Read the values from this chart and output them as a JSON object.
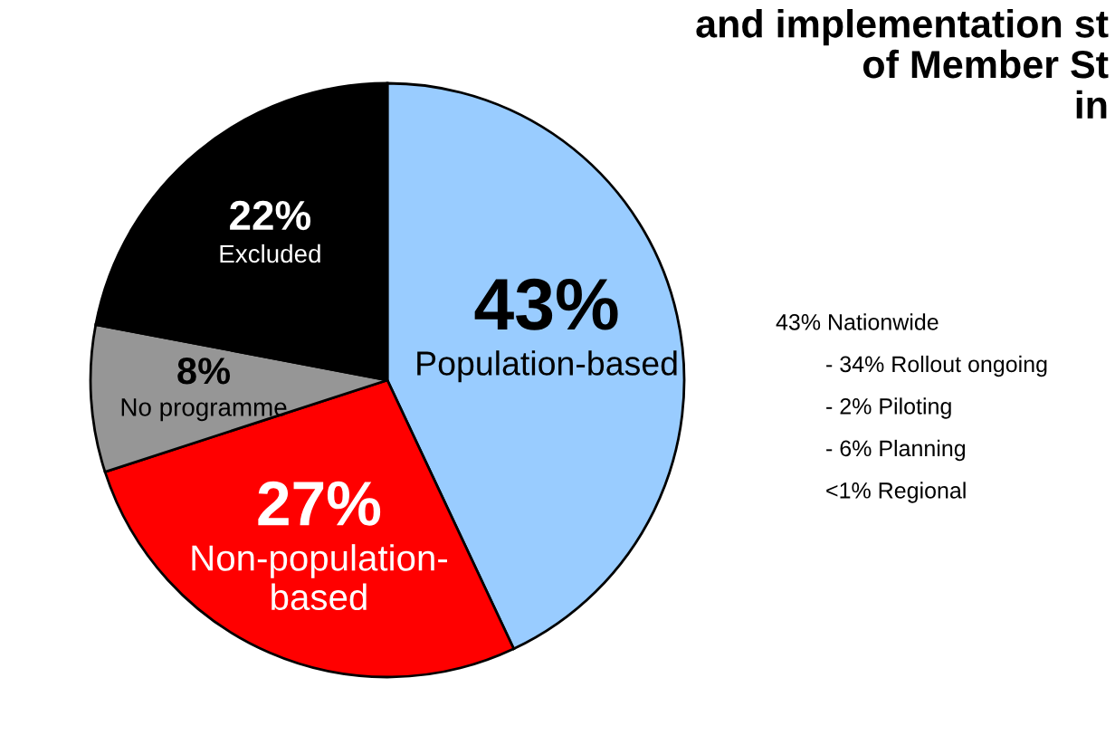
{
  "chart_data": {
    "type": "pie",
    "title": "and implementation st\nof Member St\nin",
    "categories": [
      "Population-based",
      "Non-population-\nbased",
      "No programme",
      "Excluded"
    ],
    "values": [
      43,
      27,
      8,
      22
    ],
    "value_labels": [
      "43%",
      "27%",
      "8%",
      "22%"
    ],
    "colors": [
      "#99ccff",
      "#ff0000",
      "#969696",
      "#000000"
    ],
    "annotations": [
      "43% Nationwide",
      "- 34% Rollout ongoing",
      "- 2% Piloting",
      "- 6% Planning",
      "<1% Regional"
    ]
  }
}
